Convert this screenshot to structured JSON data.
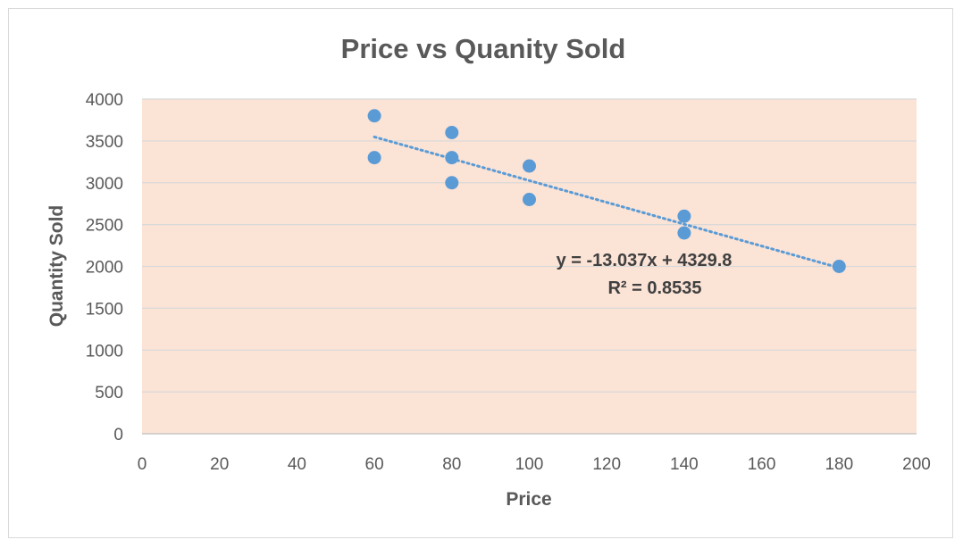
{
  "chart_data": {
    "type": "scatter",
    "title": "Price vs Quanity Sold",
    "xlabel": "Price",
    "ylabel": "Quantity Sold",
    "xlim": [
      0,
      200
    ],
    "ylim": [
      0,
      4000
    ],
    "x_ticks": [
      0,
      20,
      40,
      60,
      80,
      100,
      120,
      140,
      160,
      180,
      200
    ],
    "y_ticks": [
      0,
      500,
      1000,
      1500,
      2000,
      2500,
      3000,
      3500,
      4000
    ],
    "grid": "horizontal",
    "series": [
      {
        "points": [
          {
            "x": 60,
            "y": 3800
          },
          {
            "x": 60,
            "y": 3300
          },
          {
            "x": 80,
            "y": 3600
          },
          {
            "x": 80,
            "y": 3300
          },
          {
            "x": 80,
            "y": 3000
          },
          {
            "x": 100,
            "y": 3200
          },
          {
            "x": 100,
            "y": 2800
          },
          {
            "x": 140,
            "y": 2600
          },
          {
            "x": 140,
            "y": 2400
          },
          {
            "x": 180,
            "y": 2000
          }
        ]
      }
    ],
    "trendline": {
      "type": "linear",
      "slope": -13.037,
      "intercept": 4329.8,
      "x_range": [
        60,
        180
      ],
      "equation_label": "y = -13.037x + 4329.8",
      "r2_label": "R² = 0.8535"
    },
    "colors": {
      "marker": "#5b9bd5",
      "trendline": "#5b9bd5",
      "plot_background": "#fbe3d6",
      "gridline": "#d9d9d9",
      "text": "#595959"
    }
  }
}
